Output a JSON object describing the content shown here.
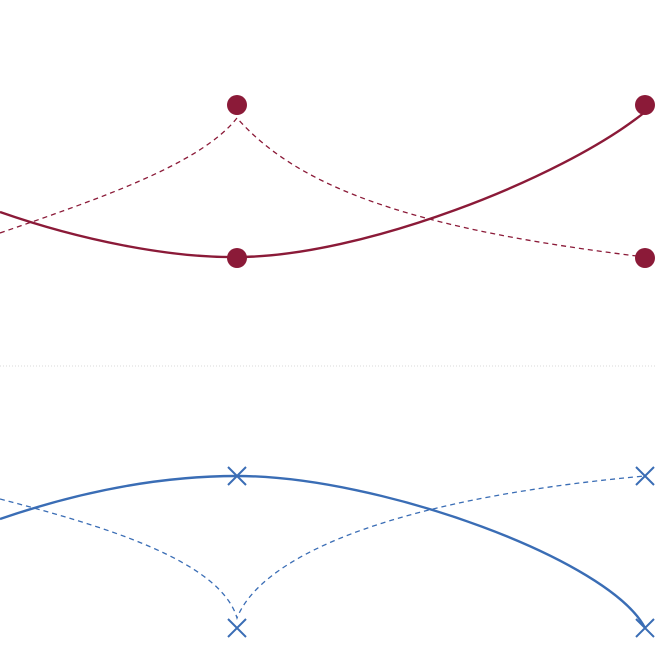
{
  "diagram": {
    "colors": {
      "background": "#ffffff",
      "upper_accent": "#8b1a38",
      "lower_accent": "#3a6db5",
      "divider": "#d8d8d8"
    },
    "upper_group": {
      "marker": "filled-circle",
      "solid_curve": "solid-connector",
      "dashed_curve": "dashed-connector",
      "node_count": 4
    },
    "lower_group": {
      "marker": "cross",
      "solid_curve": "solid-connector",
      "dashed_curve": "dashed-connector",
      "node_count": 4
    }
  }
}
